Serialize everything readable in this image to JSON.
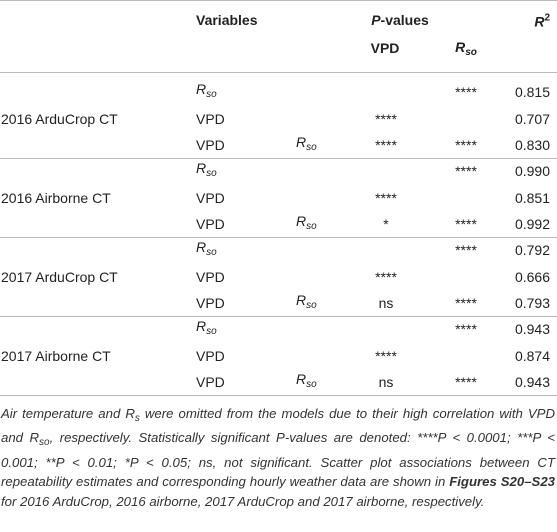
{
  "header": {
    "variables": "Variables",
    "pvalues": {
      "italic": "P",
      "rest": "-values"
    },
    "r2": {
      "base": "R",
      "sup": "2"
    },
    "vpd": "VPD",
    "rso": {
      "base": "R",
      "sub": "so"
    }
  },
  "groups": [
    {
      "label": "2016 ArduCrop CT",
      "rows": [
        {
          "var1": {
            "base": "R",
            "sub": "so"
          },
          "p_rso": "****",
          "r2": "0.815"
        },
        {
          "var1": "VPD",
          "p_vpd": "****",
          "r2": "0.707"
        },
        {
          "var1": "VPD",
          "var2": {
            "base": "R",
            "sub": "so"
          },
          "p_vpd": "****",
          "p_rso": "****",
          "r2": "0.830"
        }
      ]
    },
    {
      "label": "2016 Airborne CT",
      "rows": [
        {
          "var1": {
            "base": "R",
            "sub": "so"
          },
          "p_rso": "****",
          "r2": "0.990"
        },
        {
          "var1": "VPD",
          "p_vpd": "****",
          "r2": "0.851"
        },
        {
          "var1": "VPD",
          "var2": {
            "base": "R",
            "sub": "so"
          },
          "p_vpd": "*",
          "p_rso": "****",
          "r2": "0.992"
        }
      ]
    },
    {
      "label": "2017 ArduCrop CT",
      "rows": [
        {
          "var1": {
            "base": "R",
            "sub": "so"
          },
          "p_rso": "****",
          "r2": "0.792"
        },
        {
          "var1": "VPD",
          "p_vpd": "****",
          "r2": "0.666"
        },
        {
          "var1": "VPD",
          "var2": {
            "base": "R",
            "sub": "so"
          },
          "p_vpd": "ns",
          "p_rso": "****",
          "r2": "0.793"
        }
      ]
    },
    {
      "label": "2017 Airborne CT",
      "rows": [
        {
          "var1": {
            "base": "R",
            "sub": "so"
          },
          "p_rso": "****",
          "r2": "0.943"
        },
        {
          "var1": "VPD",
          "p_vpd": "****",
          "r2": "0.874"
        },
        {
          "var1": "VPD",
          "var2": {
            "base": "R",
            "sub": "so"
          },
          "p_vpd": "ns",
          "p_rso": "****",
          "r2": "0.943"
        }
      ]
    }
  ],
  "footnote": [
    {
      "text": "Air temperature and R"
    },
    {
      "text": "s",
      "sub": true
    },
    {
      "text": " were omitted from the models due to their high correlation with VPD and R"
    },
    {
      "text": "so",
      "sub": true
    },
    {
      "text": ", respectively. Statistically significant P-values are denoted: ****P < 0.0001; ***P < 0.001; **P < 0.01; *P < 0.05; ns, not significant. Scatter plot associations between CT repeatability estimates and corresponding hourly weather data are shown in "
    },
    {
      "text": "Figures S20–S23",
      "bold": true
    },
    {
      "text": " for 2016 ArduCrop, 2016 airborne, 2017 ArduCrop and 2017 airborne, respectively."
    }
  ]
}
